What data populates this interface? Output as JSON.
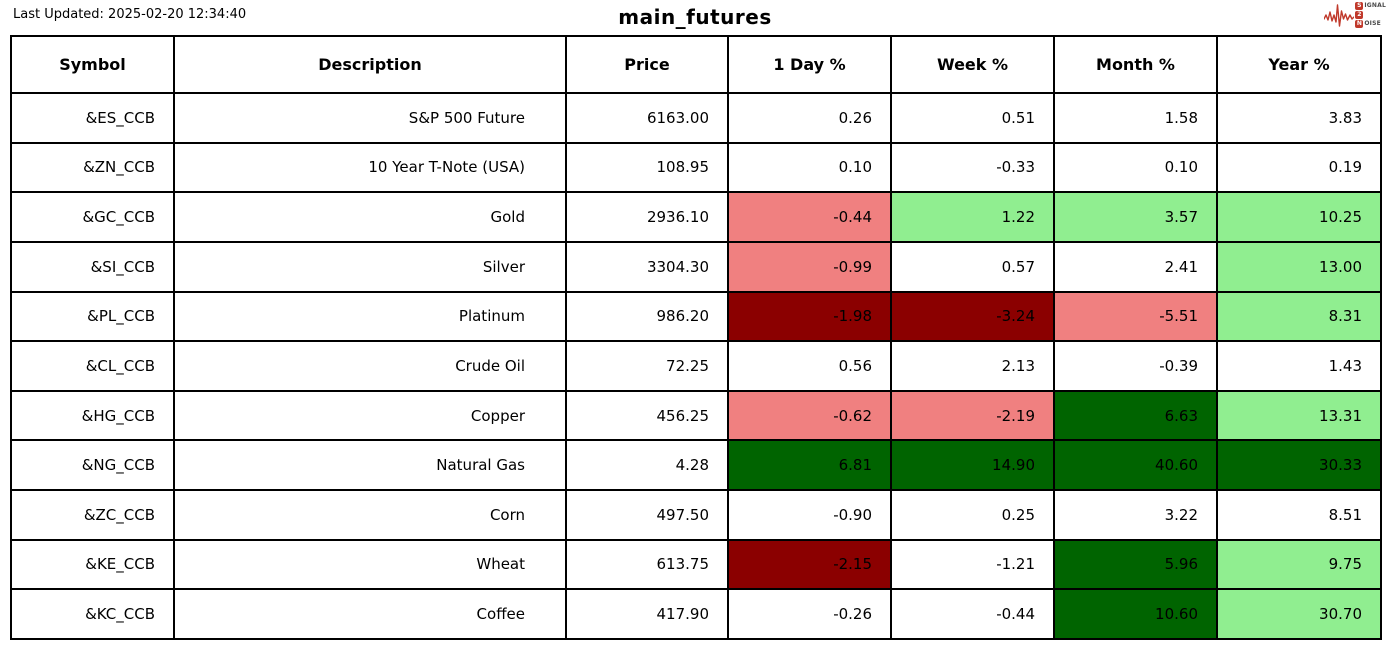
{
  "header": {
    "last_updated": "Last Updated: 2025-02-20 12:34:40",
    "title": "main_futures"
  },
  "logo": {
    "line1": {
      "badge": "S",
      "rest": "IGNAL"
    },
    "line2": {
      "badge": "2",
      "rest": ""
    },
    "line3": {
      "badge": "N",
      "rest": "OISE"
    },
    "accent_color": "#c0392b"
  },
  "chart_data": {
    "type": "table",
    "title": "main_futures",
    "columns": [
      "Symbol",
      "Description",
      "Price",
      "1 Day %",
      "Week %",
      "Month %",
      "Year %"
    ],
    "color_scale": {
      "neg2": "#8b0000",
      "neg1": "#f08080",
      "none": "#ffffff",
      "pos1": "#90ee90",
      "pos2": "#006400"
    },
    "rows": [
      {
        "symbol": "&ES_CCB",
        "description": "S&P 500 Future",
        "price": "6163.00",
        "changes": [
          {
            "v": "0.26",
            "c": "none"
          },
          {
            "v": "0.51",
            "c": "none"
          },
          {
            "v": "1.58",
            "c": "none"
          },
          {
            "v": "3.83",
            "c": "none"
          }
        ]
      },
      {
        "symbol": "&ZN_CCB",
        "description": "10 Year T-Note (USA)",
        "price": "108.95",
        "changes": [
          {
            "v": "0.10",
            "c": "none"
          },
          {
            "v": "-0.33",
            "c": "none"
          },
          {
            "v": "0.10",
            "c": "none"
          },
          {
            "v": "0.19",
            "c": "none"
          }
        ]
      },
      {
        "symbol": "&GC_CCB",
        "description": "Gold",
        "price": "2936.10",
        "changes": [
          {
            "v": "-0.44",
            "c": "neg1"
          },
          {
            "v": "1.22",
            "c": "pos1"
          },
          {
            "v": "3.57",
            "c": "pos1"
          },
          {
            "v": "10.25",
            "c": "pos1"
          }
        ]
      },
      {
        "symbol": "&SI_CCB",
        "description": "Silver",
        "price": "3304.30",
        "changes": [
          {
            "v": "-0.99",
            "c": "neg1"
          },
          {
            "v": "0.57",
            "c": "none"
          },
          {
            "v": "2.41",
            "c": "none"
          },
          {
            "v": "13.00",
            "c": "pos1"
          }
        ]
      },
      {
        "symbol": "&PL_CCB",
        "description": "Platinum",
        "price": "986.20",
        "changes": [
          {
            "v": "-1.98",
            "c": "neg2"
          },
          {
            "v": "-3.24",
            "c": "neg2"
          },
          {
            "v": "-5.51",
            "c": "neg1"
          },
          {
            "v": "8.31",
            "c": "pos1"
          }
        ]
      },
      {
        "symbol": "&CL_CCB",
        "description": "Crude Oil",
        "price": "72.25",
        "changes": [
          {
            "v": "0.56",
            "c": "none"
          },
          {
            "v": "2.13",
            "c": "none"
          },
          {
            "v": "-0.39",
            "c": "none"
          },
          {
            "v": "1.43",
            "c": "none"
          }
        ]
      },
      {
        "symbol": "&HG_CCB",
        "description": "Copper",
        "price": "456.25",
        "changes": [
          {
            "v": "-0.62",
            "c": "neg1"
          },
          {
            "v": "-2.19",
            "c": "neg1"
          },
          {
            "v": "6.63",
            "c": "pos2"
          },
          {
            "v": "13.31",
            "c": "pos1"
          }
        ]
      },
      {
        "symbol": "&NG_CCB",
        "description": "Natural Gas",
        "price": "4.28",
        "changes": [
          {
            "v": "6.81",
            "c": "pos2"
          },
          {
            "v": "14.90",
            "c": "pos2"
          },
          {
            "v": "40.60",
            "c": "pos2"
          },
          {
            "v": "30.33",
            "c": "pos2"
          }
        ]
      },
      {
        "symbol": "&ZC_CCB",
        "description": "Corn",
        "price": "497.50",
        "changes": [
          {
            "v": "-0.90",
            "c": "none"
          },
          {
            "v": "0.25",
            "c": "none"
          },
          {
            "v": "3.22",
            "c": "none"
          },
          {
            "v": "8.51",
            "c": "none"
          }
        ]
      },
      {
        "symbol": "&KE_CCB",
        "description": "Wheat",
        "price": "613.75",
        "changes": [
          {
            "v": "-2.15",
            "c": "neg2"
          },
          {
            "v": "-1.21",
            "c": "none"
          },
          {
            "v": "5.96",
            "c": "pos2"
          },
          {
            "v": "9.75",
            "c": "pos1"
          }
        ]
      },
      {
        "symbol": "&KC_CCB",
        "description": "Coffee",
        "price": "417.90",
        "changes": [
          {
            "v": "-0.26",
            "c": "none"
          },
          {
            "v": "-0.44",
            "c": "none"
          },
          {
            "v": "10.60",
            "c": "pos2"
          },
          {
            "v": "30.70",
            "c": "pos1"
          }
        ]
      }
    ]
  }
}
